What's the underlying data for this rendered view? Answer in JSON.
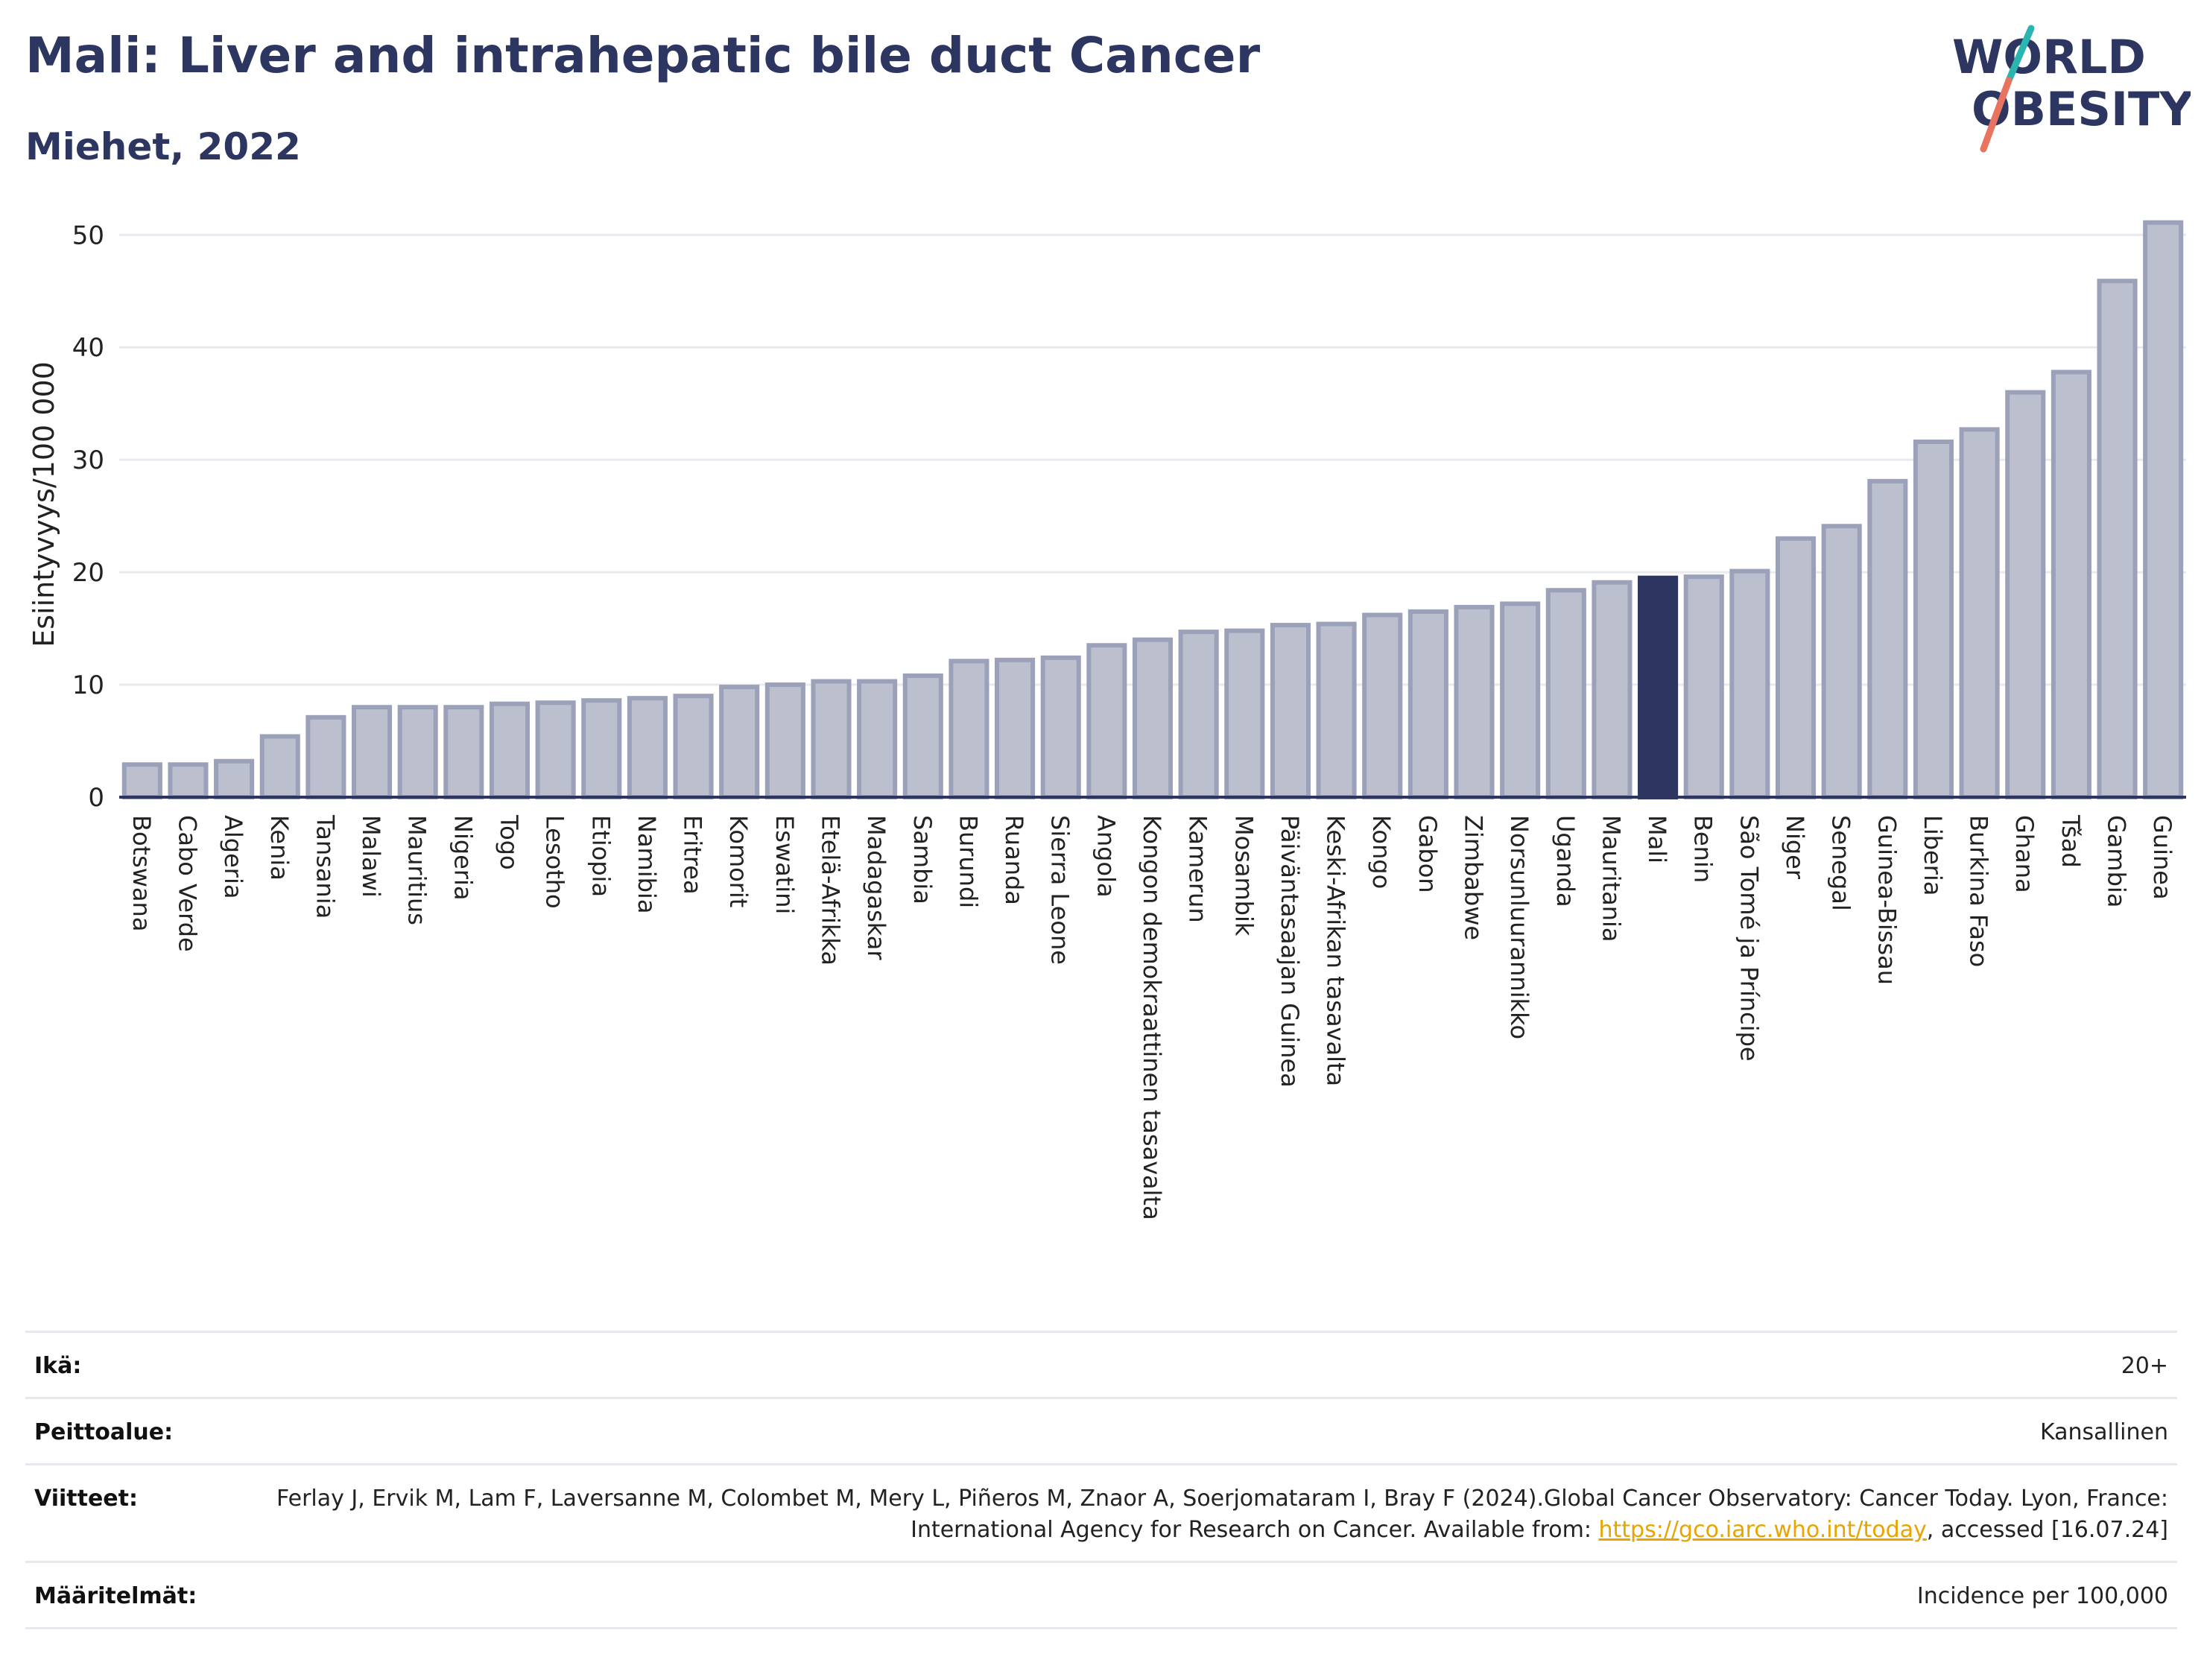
{
  "header": {
    "title": "Mali: Liver and intrahepatic bile duct Cancer",
    "subtitle": "Miehet, 2022"
  },
  "logo": {
    "line1": "WORLD",
    "line2": "OBESITY"
  },
  "colors": {
    "highlight": "#2d3561",
    "bar": "#bcc0ce",
    "bar_edge": "#9ba1b8",
    "title": "#2d3561",
    "link": "#e8a400",
    "logo_teal": "#2bb5b0",
    "logo_coral": "#e8735f"
  },
  "chart_data": {
    "type": "bar",
    "ylabel": "Esiintyvyys/100 000",
    "xlabel": "",
    "ylim": [
      0,
      53
    ],
    "yticks": [
      0,
      10,
      20,
      30,
      40,
      50
    ],
    "grid": true,
    "highlight": "Mali",
    "categories": [
      "Botswana",
      "Cabo Verde",
      "Algeria",
      "Kenia",
      "Tansania",
      "Malawi",
      "Mauritius",
      "Nigeria",
      "Togo",
      "Lesotho",
      "Etiopia",
      "Namibia",
      "Eritrea",
      "Komorit",
      "Eswatini",
      "Etelä-Afrikka",
      "Madagaskar",
      "Sambia",
      "Burundi",
      "Ruanda",
      "Sierra Leone",
      "Angola",
      "Kongon demokraattinen tasavalta",
      "Kamerun",
      "Mosambik",
      "Päiväntasaajan Guinea",
      "Keski-Afrikan tasavalta",
      "Kongo",
      "Gabon",
      "Zimbabwe",
      "Norsunluurannikko",
      "Uganda",
      "Mauritania",
      "Mali",
      "Benin",
      "São Tomé ja Príncipe",
      "Niger",
      "Senegal",
      "Guinea-Bissau",
      "Liberia",
      "Burkina Faso",
      "Ghana",
      "Tšad",
      "Gambia",
      "Guinea"
    ],
    "values": [
      2.9,
      2.9,
      3.2,
      5.4,
      7.1,
      8.0,
      8.0,
      8.0,
      8.3,
      8.4,
      8.6,
      8.8,
      9.0,
      9.8,
      10.0,
      10.3,
      10.3,
      10.8,
      12.1,
      12.2,
      12.4,
      13.5,
      14.0,
      14.7,
      14.8,
      15.3,
      15.4,
      16.2,
      16.5,
      16.9,
      17.2,
      18.4,
      19.1,
      19.5,
      19.6,
      20.1,
      23.0,
      24.1,
      28.1,
      31.6,
      32.7,
      36.0,
      37.8,
      45.9,
      51.1
    ]
  },
  "meta": {
    "rows": [
      {
        "label": "Ikä:",
        "value": "20+"
      },
      {
        "label": "Peittoalue:",
        "value": "Kansallinen"
      },
      {
        "label": "Viitteet:",
        "value_before": "Ferlay J, Ervik M, Lam F, Laversanne M, Colombet M, Mery L, Piñeros M, Znaor A, Soerjomataram I, Bray F (2024).Global Cancer Observatory: Cancer Today. Lyon, France: International Agency for Research on Cancer. Available from: ",
        "link": "https://gco.iarc.who.int/today",
        "value_after": ", accessed [16.07.24]"
      },
      {
        "label": "Määritelmät:",
        "value": "Incidence per 100,000"
      }
    ]
  }
}
